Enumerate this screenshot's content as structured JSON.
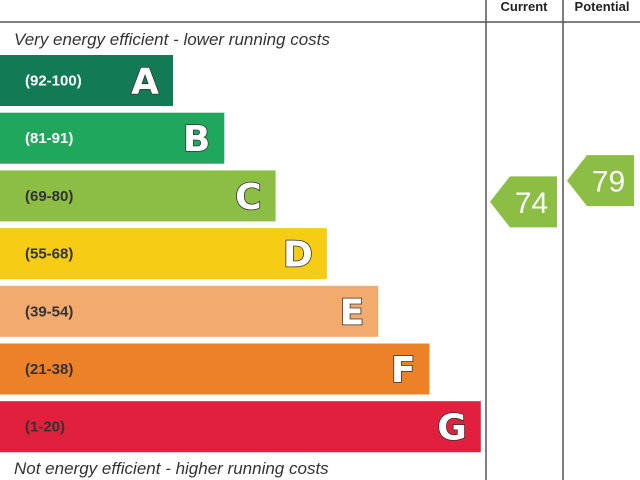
{
  "chart_data": {
    "type": "bar",
    "header": {
      "current": "Current",
      "potential": "Potential"
    },
    "top_note": "Very energy efficient - lower running costs",
    "bottom_note": "Not energy efficient - higher running costs",
    "bands": [
      {
        "letter": "A",
        "range": "(92-100)",
        "color": "#137a56",
        "label_color": "#ffffff"
      },
      {
        "letter": "B",
        "range": "(81-91)",
        "color": "#1fa75d",
        "label_color": "#ffffff"
      },
      {
        "letter": "C",
        "range": "(69-80)",
        "color": "#8cbd44",
        "label_color": "#333333"
      },
      {
        "letter": "D",
        "range": "(55-68)",
        "color": "#f7cc15",
        "label_color": "#333333"
      },
      {
        "letter": "E",
        "range": "(39-54)",
        "color": "#f2aa6d",
        "label_color": "#333333"
      },
      {
        "letter": "F",
        "range": "(21-38)",
        "color": "#ec8127",
        "label_color": "#333333"
      },
      {
        "letter": "G",
        "range": "(1-20)",
        "color": "#e0203d",
        "label_color": "#333333"
      }
    ],
    "current": {
      "value": 74,
      "band": "C",
      "color": "#8cbd44"
    },
    "potential": {
      "value": 79,
      "band": "C",
      "color": "#8cbd44"
    }
  }
}
